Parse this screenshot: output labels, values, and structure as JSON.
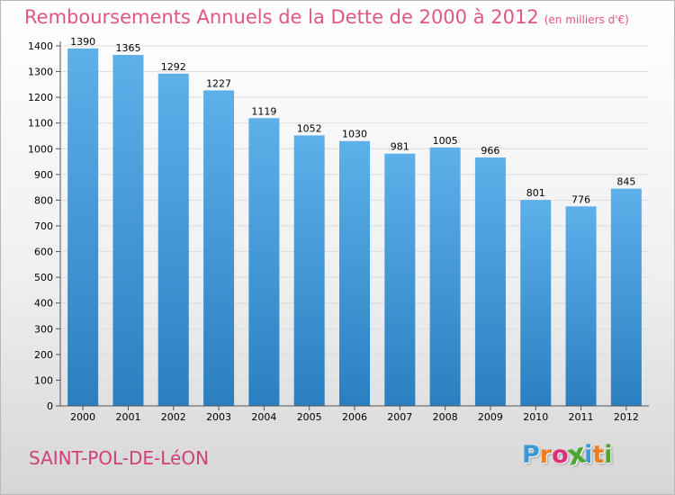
{
  "header": {
    "title": "Remboursements Annuels de la Dette de 2000 à 2012",
    "unit": "(en milliers d'€)"
  },
  "place_name": "SAINT-POL-DE-LéON",
  "logo": {
    "text": "Proxiti",
    "letters": [
      "P",
      "r",
      "o",
      "x",
      "i",
      "t",
      "i"
    ],
    "letter_colors": [
      "#3a9ad8",
      "#f07c1c",
      "#e0307a",
      "#4aa830",
      "#3a9ad8",
      "#f07c1c",
      "#4aa830"
    ]
  },
  "colors": {
    "title": "#e05585",
    "bar_top": "#5eb0ea",
    "bar_bottom": "#2a7fc0",
    "grid": "#dcdcdc",
    "axis": "#555555"
  },
  "chart_data": {
    "type": "bar",
    "title": "Remboursements Annuels de la Dette de 2000 à 2012",
    "ylabel": "(en milliers d'€)",
    "xlabel": "",
    "categories": [
      "2000",
      "2001",
      "2002",
      "2003",
      "2004",
      "2005",
      "2006",
      "2007",
      "2008",
      "2009",
      "2010",
      "2011",
      "2012"
    ],
    "values": [
      1390,
      1365,
      1292,
      1227,
      1119,
      1052,
      1030,
      981,
      1005,
      966,
      801,
      776,
      845
    ],
    "ylim": [
      0,
      1400
    ],
    "yticks": [
      0,
      100,
      200,
      300,
      400,
      500,
      600,
      700,
      800,
      900,
      1000,
      1100,
      1200,
      1300,
      1400
    ],
    "grid": true,
    "legend": "none"
  }
}
